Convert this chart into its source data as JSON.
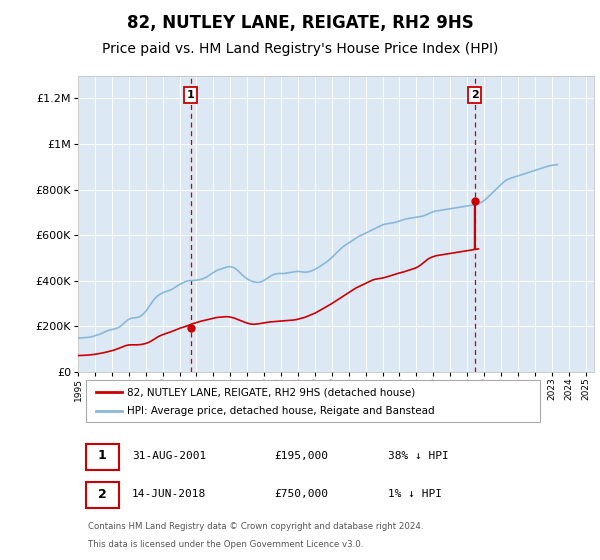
{
  "title": "82, NUTLEY LANE, REIGATE, RH2 9HS",
  "subtitle": "Price paid vs. HM Land Registry's House Price Index (HPI)",
  "title_fontsize": 12,
  "subtitle_fontsize": 10,
  "bg_color": "#dce9f5",
  "ylim": [
    0,
    1300000
  ],
  "yticks": [
    0,
    200000,
    400000,
    600000,
    800000,
    1000000,
    1200000
  ],
  "ytick_labels": [
    "£0",
    "£200K",
    "£400K",
    "£600K",
    "£800K",
    "£1M",
    "£1.2M"
  ],
  "xmin": 1995.0,
  "xmax": 2025.5,
  "hpi_color": "#89b8d8",
  "price_color": "#cc0000",
  "vline_color": "#cc0000",
  "sale1_year": 2001.667,
  "sale1_price": 195000,
  "sale2_year": 2018.45,
  "sale2_price": 750000,
  "legend_label1": "82, NUTLEY LANE, REIGATE, RH2 9HS (detached house)",
  "legend_label2": "HPI: Average price, detached house, Reigate and Banstead",
  "footnote1": "Contains HM Land Registry data © Crown copyright and database right 2024.",
  "footnote2": "This data is licensed under the Open Government Licence v3.0.",
  "table_rows": [
    {
      "num": "1",
      "date": "31-AUG-2001",
      "price": "£195,000",
      "hpi": "38% ↓ HPI"
    },
    {
      "num": "2",
      "date": "14-JUN-2018",
      "price": "£750,000",
      "hpi": "1% ↓ HPI"
    }
  ],
  "hpi_years_start": 1995.0,
  "hpi_step": 0.08333,
  "hpi_values": [
    148000,
    149000,
    149500,
    150000,
    150500,
    151000,
    151500,
    152000,
    152500,
    153500,
    155000,
    157000,
    159000,
    161000,
    163000,
    165000,
    167000,
    170000,
    173000,
    176000,
    179000,
    181000,
    183000,
    185000,
    186000,
    187500,
    189000,
    191000,
    193000,
    196000,
    200000,
    205000,
    210000,
    216000,
    222000,
    227000,
    231000,
    234000,
    236000,
    237000,
    237500,
    238000,
    239000,
    241000,
    244000,
    248000,
    253000,
    259000,
    266000,
    274000,
    283000,
    292000,
    301000,
    310000,
    318000,
    325000,
    331000,
    336000,
    340000,
    344000,
    347000,
    350000,
    352000,
    354000,
    356000,
    358000,
    361000,
    364000,
    368000,
    372000,
    376000,
    380000,
    384000,
    387000,
    390000,
    393000,
    396000,
    398000,
    400000,
    401000,
    401000,
    401000,
    401000,
    402000,
    403000,
    404000,
    405000,
    406000,
    408000,
    410000,
    413000,
    416000,
    420000,
    424000,
    428000,
    432000,
    436000,
    440000,
    444000,
    447000,
    449000,
    451000,
    453000,
    455000,
    457000,
    459000,
    461000,
    462000,
    462000,
    461000,
    459000,
    456000,
    452000,
    447000,
    441000,
    435000,
    429000,
    423000,
    418000,
    413000,
    409000,
    405000,
    402000,
    399000,
    397000,
    395000,
    394000,
    393000,
    393000,
    394000,
    396000,
    399000,
    402000,
    406000,
    410000,
    414000,
    418000,
    422000,
    425000,
    428000,
    430000,
    431000,
    432000,
    432000,
    432000,
    432000,
    432000,
    433000,
    434000,
    435000,
    436000,
    437000,
    438000,
    439000,
    440000,
    441000,
    441000,
    441000,
    440000,
    439000,
    438000,
    438000,
    438000,
    439000,
    440000,
    442000,
    444000,
    447000,
    450000,
    453000,
    457000,
    461000,
    465000,
    469000,
    473000,
    477000,
    481000,
    486000,
    491000,
    496000,
    502000,
    508000,
    514000,
    520000,
    526000,
    532000,
    538000,
    544000,
    549000,
    554000,
    558000,
    562000,
    566000,
    570000,
    574000,
    578000,
    582000,
    586000,
    590000,
    594000,
    597000,
    600000,
    603000,
    606000,
    609000,
    612000,
    615000,
    618000,
    621000,
    624000,
    627000,
    630000,
    633000,
    636000,
    639000,
    642000,
    645000,
    647000,
    649000,
    650000,
    651000,
    652000,
    653000,
    654000,
    655000,
    656000,
    658000,
    660000,
    662000,
    664000,
    666000,
    668000,
    670000,
    672000,
    673000,
    674000,
    675000,
    676000,
    677000,
    678000,
    679000,
    680000,
    681000,
    682000,
    683000,
    685000,
    687000,
    689000,
    692000,
    695000,
    698000,
    701000,
    703000,
    705000,
    706000,
    707000,
    708000,
    709000,
    710000,
    711000,
    712000,
    713000,
    714000,
    715000,
    716000,
    717000,
    718000,
    719000,
    720000,
    721000,
    722000,
    723000,
    724000,
    725000,
    726000,
    727000,
    728000,
    729000,
    730000,
    731000,
    732000,
    733000,
    734000,
    736000,
    738000,
    741000,
    744000,
    748000,
    752000,
    757000,
    762000,
    768000,
    774000,
    780000,
    786000,
    792000,
    798000,
    804000,
    810000,
    816000,
    822000,
    828000,
    833000,
    838000,
    842000,
    845000,
    848000,
    850000,
    852000,
    854000,
    856000,
    858000,
    860000,
    862000,
    864000,
    866000,
    868000,
    870000,
    872000,
    874000,
    876000,
    878000,
    880000,
    882000,
    884000,
    886000,
    888000,
    890000,
    892000,
    894000,
    896000,
    898000,
    900000,
    902000,
    904000,
    905000,
    906000,
    907000,
    908000,
    909000,
    910000
  ],
  "price_years_start": 1995.0,
  "price_step": 0.08333,
  "price_values": [
    72000,
    72200,
    72400,
    72700,
    73000,
    73400,
    73800,
    74200,
    74700,
    75300,
    76000,
    76800,
    77700,
    78700,
    79700,
    80700,
    81800,
    83000,
    84300,
    85700,
    87200,
    88700,
    90200,
    91700,
    93300,
    95000,
    97000,
    99200,
    101500,
    104000,
    106500,
    109000,
    111500,
    114000,
    116000,
    117500,
    118500,
    119000,
    119200,
    119100,
    119000,
    119000,
    119200,
    119500,
    120000,
    121000,
    122200,
    123500,
    125000,
    127000,
    129500,
    132500,
    136000,
    140000,
    144000,
    148000,
    152000,
    155500,
    158500,
    161000,
    163500,
    166000,
    168000,
    170000,
    172000,
    174000,
    176500,
    179000,
    181500,
    184000,
    186500,
    189000,
    191500,
    193500,
    195000,
    197000,
    199000,
    201500,
    204000,
    206500,
    209000,
    211000,
    213000,
    215000,
    217000,
    219000,
    221000,
    222500,
    224000,
    225500,
    227000,
    228500,
    230000,
    231500,
    233000,
    234500,
    236000,
    237500,
    238500,
    239500,
    240000,
    240500,
    241000,
    241500,
    242000,
    242500,
    242500,
    242000,
    241000,
    239500,
    238000,
    236000,
    233500,
    231000,
    228500,
    226000,
    223500,
    221000,
    218500,
    216500,
    214500,
    212500,
    211000,
    210000,
    209500,
    209500,
    210000,
    210500,
    211500,
    212500,
    213500,
    214500,
    215500,
    216500,
    217500,
    218500,
    219500,
    220000,
    220500,
    221000,
    221500,
    222000,
    222500,
    223000,
    223500,
    224000,
    224500,
    225000,
    225500,
    226000,
    226500,
    227000,
    227500,
    228000,
    229000,
    230000,
    231500,
    233000,
    234500,
    236000,
    238000,
    240000,
    242500,
    245000,
    247500,
    250000,
    252500,
    255000,
    258000,
    261000,
    264500,
    268000,
    271500,
    275000,
    278500,
    282000,
    285500,
    289000,
    292500,
    296000,
    300000,
    304000,
    308000,
    312000,
    316000,
    320000,
    324000,
    328000,
    332000,
    336000,
    340000,
    344000,
    348000,
    352000,
    356000,
    360000,
    364000,
    368000,
    371000,
    374000,
    377000,
    380000,
    383000,
    386000,
    389000,
    392000,
    395000,
    398000,
    401000,
    403500,
    405500,
    407000,
    408000,
    409000,
    410000,
    411000,
    412000,
    413500,
    415000,
    417000,
    419000,
    421000,
    423000,
    425000,
    427000,
    429000,
    431000,
    432500,
    434000,
    435500,
    437000,
    439000,
    441000,
    443000,
    445000,
    447000,
    449000,
    451000,
    453000,
    455000,
    458000,
    461000,
    465000,
    469000,
    474000,
    479000,
    484000,
    489000,
    494000,
    498000,
    501000,
    504000,
    506000,
    508000,
    510000,
    511000,
    512000,
    513000,
    514000,
    515000,
    516000,
    517000,
    518000,
    519000,
    520000,
    521000,
    522000,
    523000,
    524000,
    525000,
    526000,
    527000,
    528000,
    529000,
    530000,
    531000,
    532000,
    533000,
    534000,
    535000,
    536000,
    537000,
    538000,
    539000,
    540000
  ]
}
